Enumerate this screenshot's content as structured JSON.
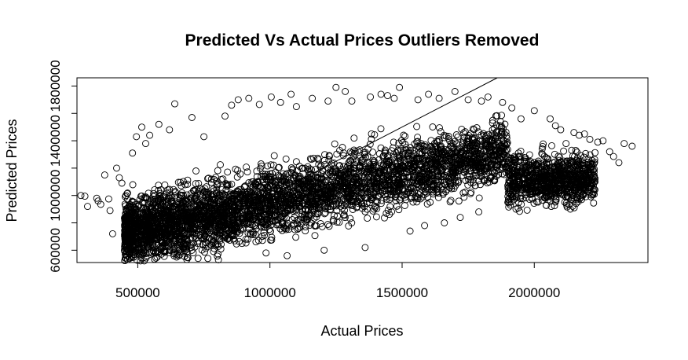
{
  "chart_data": {
    "type": "scatter",
    "title": "Predicted Vs Actual Prices Outliers Removed",
    "xlabel": "Actual Prices",
    "ylabel": "Predicted Prices",
    "xlim": [
      270000,
      2430000
    ],
    "ylim": [
      510000,
      1860000
    ],
    "x_ticks": [
      500000,
      1000000,
      1500000,
      2000000
    ],
    "x_tick_labels": [
      "500000",
      "1000000",
      "1500000",
      "2000000"
    ],
    "y_ticks": [
      600000,
      800000,
      1000000,
      1200000,
      1400000,
      1600000,
      1800000
    ],
    "y_tick_labels": [
      "600000",
      "",
      "1000000",
      "",
      "1400000",
      "",
      "1800000"
    ],
    "marker": "open-circle",
    "grid": false,
    "reference_line": {
      "slope": 1,
      "intercept": 0
    },
    "series": [
      {
        "points": [
          [
            285000,
            1000000
          ],
          [
            300000,
            995000
          ],
          [
            310000,
            920000
          ],
          [
            345000,
            980000
          ],
          [
            350000,
            960000
          ],
          [
            360000,
            935000
          ],
          [
            375000,
            1150000
          ],
          [
            390000,
            975000
          ],
          [
            395000,
            890000
          ],
          [
            405000,
            720000
          ],
          [
            420000,
            1200000
          ],
          [
            430000,
            1130000
          ],
          [
            440000,
            1090000
          ],
          [
            455000,
            1000000
          ],
          [
            470000,
            935000
          ],
          [
            480000,
            1310000
          ],
          [
            495000,
            1430000
          ],
          [
            500000,
            620000
          ],
          [
            515000,
            1500000
          ],
          [
            530000,
            1380000
          ],
          [
            545000,
            1440000
          ],
          [
            560000,
            590000
          ],
          [
            580000,
            1520000
          ],
          [
            600000,
            555000
          ],
          [
            620000,
            1480000
          ],
          [
            640000,
            1670000
          ],
          [
            655000,
            560000
          ],
          [
            690000,
            545000
          ],
          [
            705000,
            1570000
          ],
          [
            750000,
            1430000
          ],
          [
            765000,
            540000
          ],
          [
            805000,
            530000
          ],
          [
            830000,
            1580000
          ],
          [
            855000,
            1660000
          ],
          [
            870000,
            490000
          ],
          [
            880000,
            1700000
          ],
          [
            920000,
            1710000
          ],
          [
            960000,
            1665000
          ],
          [
            985000,
            580000
          ],
          [
            1005000,
            1720000
          ],
          [
            1040000,
            1680000
          ],
          [
            1065000,
            560000
          ],
          [
            1080000,
            1740000
          ],
          [
            1100000,
            1650000
          ],
          [
            1160000,
            1710000
          ],
          [
            1205000,
            600000
          ],
          [
            1220000,
            1690000
          ],
          [
            1250000,
            1790000
          ],
          [
            1285000,
            1760000
          ],
          [
            1310000,
            1690000
          ],
          [
            1360000,
            620000
          ],
          [
            1380000,
            1720000
          ],
          [
            1420000,
            1740000
          ],
          [
            1445000,
            1730000
          ],
          [
            1470000,
            1710000
          ],
          [
            1490000,
            1790000
          ],
          [
            1530000,
            740000
          ],
          [
            1560000,
            1700000
          ],
          [
            1585000,
            780000
          ],
          [
            1600000,
            1740000
          ],
          [
            1640000,
            1710000
          ],
          [
            1660000,
            800000
          ],
          [
            1700000,
            1760000
          ],
          [
            1720000,
            840000
          ],
          [
            1750000,
            1700000
          ],
          [
            1790000,
            880000
          ],
          [
            1800000,
            1690000
          ],
          [
            1825000,
            1720000
          ],
          [
            1880000,
            1680000
          ],
          [
            1900000,
            950000
          ],
          [
            1915000,
            1640000
          ],
          [
            1950000,
            1560000
          ],
          [
            1980000,
            1100000
          ],
          [
            2000000,
            1620000
          ],
          [
            2030000,
            1340000
          ],
          [
            2060000,
            1560000
          ],
          [
            2080000,
            1510000
          ],
          [
            2100000,
            1480000
          ],
          [
            2120000,
            1380000
          ],
          [
            2150000,
            1460000
          ],
          [
            2170000,
            1440000
          ],
          [
            2190000,
            1450000
          ],
          [
            2210000,
            1410000
          ],
          [
            2220000,
            1230000
          ],
          [
            2240000,
            1390000
          ],
          [
            2260000,
            1400000
          ],
          [
            2285000,
            1320000
          ],
          [
            2300000,
            1285000
          ],
          [
            2320000,
            1240000
          ],
          [
            2340000,
            1380000
          ],
          [
            2370000,
            1360000
          ]
        ]
      }
    ]
  }
}
